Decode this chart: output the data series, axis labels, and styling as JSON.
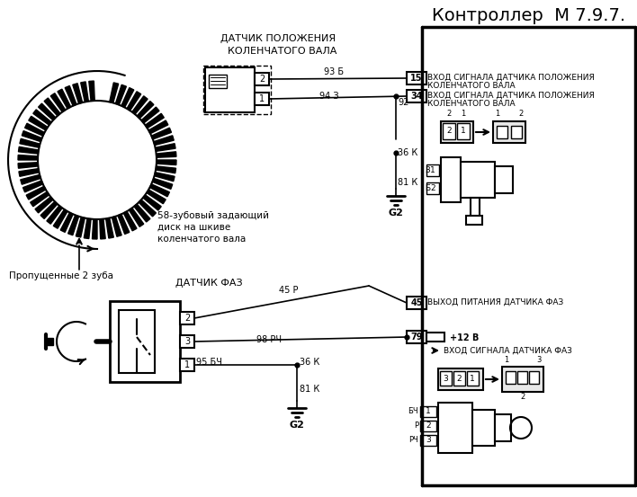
{
  "title": "Контроллер  М 7.9.7.",
  "bg_color": "#ffffff",
  "lc": "#000000",
  "tc": "#000000",
  "label_sensor1_line1": "ДАТЧИК ПОЛОЖЕНИЯ",
  "label_sensor1_line2": "КОЛЕНЧАТОГО ВАЛА",
  "label_sensor2": "ДАТЧИК ФАЗ",
  "label_disk_line1": "58-зубовый задающий",
  "label_disk_line2": "диск на шкиве",
  "label_disk_line3": "коленчатого вала",
  "label_missing": "Пропущенные 2 зуба",
  "pin15_label_line1": "ВХОД СИГНАЛА ДАТЧИКА ПОЛОЖЕНИЯ",
  "pin15_label_line2": "КОЛЕНЧАТОГО ВАЛА",
  "pin34_label_line1": "ВХОД СИГНАЛА ДАТЧИКА ПОЛОЖЕНИЯ",
  "pin34_label_line2": "КОЛЕНЧАТОГО ВАЛА",
  "pin45_label": "ВЫХОД ПИТАНИЯ ДАТЧИКА ФАЗ",
  "pin79_label": "+12 В",
  "pin_signal_faz": "ВХОД СИГНАЛА ДАТЧИКА ФАЗ",
  "wire_93B": "93 Б",
  "wire_94Z": "94 З",
  "wire_92": "92",
  "wire_36K": "36 К",
  "wire_81K": "81 К",
  "wire_45P": "45 Р",
  "wire_98RCH": "98 РЧ",
  "wire_95BCH": "95 БЧ",
  "pin_15": "15",
  "pin_34": "34",
  "pin_45": "45",
  "pin_79": "79",
  "ground_label": "G2",
  "label_3": "3",
  "label_B": "Б",
  "label_BCH": "БЧ",
  "label_P": "Р",
  "label_RCH": "РЧ"
}
